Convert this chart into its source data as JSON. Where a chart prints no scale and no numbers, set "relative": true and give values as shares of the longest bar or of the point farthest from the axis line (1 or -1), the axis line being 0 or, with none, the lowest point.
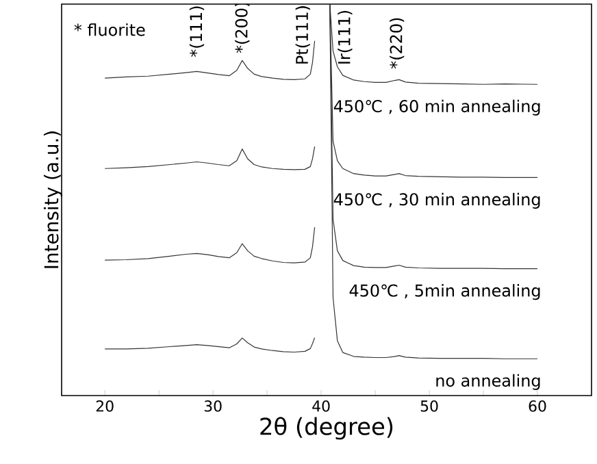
{
  "chart_data": {
    "type": "line",
    "relative": true,
    "xlabel": "2θ (degree)",
    "ylabel": "Intensity (a.u.)",
    "xlim": [
      16,
      65
    ],
    "xticks": [
      20,
      30,
      40,
      50,
      60,
      {
        "value": 25,
        "label": null
      },
      {
        "value": 35,
        "label": null
      },
      {
        "value": 45,
        "label": null
      },
      {
        "value": 55,
        "label": null
      }
    ],
    "tick_labels": "x",
    "grid": false,
    "legend": false,
    "marker": "none",
    "line_style": "solid",
    "x": [
      20,
      22,
      24,
      26,
      27.5,
      28.5,
      29.5,
      30.5,
      31.5,
      32.2,
      32.7,
      33.2,
      33.8,
      34.5,
      35.5,
      36.5,
      37.5,
      38.5,
      39.0,
      39.2,
      39.4,
      40.0,
      40.8,
      41.1,
      41.5,
      42,
      43,
      44,
      45,
      46,
      46.8,
      47.2,
      47.8,
      49,
      51,
      53,
      55,
      57,
      60
    ],
    "series": [
      {
        "name": "450℃ , 60 min annealing",
        "color": "#333333",
        "values": [
          0.811,
          0.814,
          0.816,
          0.821,
          0.825,
          0.828,
          0.824,
          0.82,
          0.817,
          0.831,
          0.856,
          0.836,
          0.821,
          0.815,
          0.811,
          0.808,
          0.807,
          0.809,
          0.821,
          0.851,
          0.906,
          null,
          1.0,
          0.88,
          0.84,
          0.818,
          0.806,
          0.802,
          0.8,
          0.8,
          0.805,
          0.807,
          0.801,
          0.798,
          0.797,
          0.796,
          0.795,
          0.796,
          0.795
        ]
      },
      {
        "name": "450℃ , 30 min annealing",
        "color": "#333333",
        "values": [
          0.58,
          0.582,
          0.585,
          0.59,
          0.594,
          0.597,
          0.594,
          0.59,
          0.587,
          0.6,
          0.63,
          0.605,
          0.59,
          0.584,
          0.58,
          0.578,
          0.577,
          0.578,
          0.585,
          0.605,
          0.636,
          null,
          1.0,
          0.65,
          0.6,
          0.58,
          0.567,
          0.563,
          0.561,
          0.561,
          0.565,
          0.567,
          0.562,
          0.56,
          0.559,
          0.558,
          0.558,
          0.557,
          0.557
        ]
      },
      {
        "name": "450℃ , 5min annealing",
        "color": "#333333",
        "values": [
          0.346,
          0.347,
          0.35,
          0.356,
          0.361,
          0.363,
          0.36,
          0.355,
          0.352,
          0.365,
          0.388,
          0.37,
          0.356,
          0.35,
          0.344,
          0.34,
          0.339,
          0.341,
          0.352,
          0.38,
          0.43,
          null,
          1.0,
          0.45,
          0.37,
          0.345,
          0.332,
          0.328,
          0.327,
          0.327,
          0.331,
          0.333,
          0.328,
          0.326,
          0.325,
          0.325,
          0.325,
          0.324,
          0.324
        ]
      },
      {
        "name": "no annealing",
        "color": "#333333",
        "values": [
          0.119,
          0.119,
          0.121,
          0.125,
          0.128,
          0.13,
          0.128,
          0.125,
          0.122,
          0.132,
          0.147,
          0.135,
          0.124,
          0.119,
          0.115,
          0.112,
          0.111,
          0.113,
          0.12,
          0.133,
          0.148,
          null,
          1.0,
          0.25,
          0.14,
          0.11,
          0.1,
          0.098,
          0.097,
          0.097,
          0.1,
          0.102,
          0.098,
          0.096,
          0.095,
          0.095,
          0.095,
          0.094,
          0.094
        ]
      }
    ],
    "annotations": [
      "* fluorite",
      "*(111)",
      "*(200)",
      "Pt(111)",
      "Ir(111)",
      "*(220)"
    ]
  }
}
